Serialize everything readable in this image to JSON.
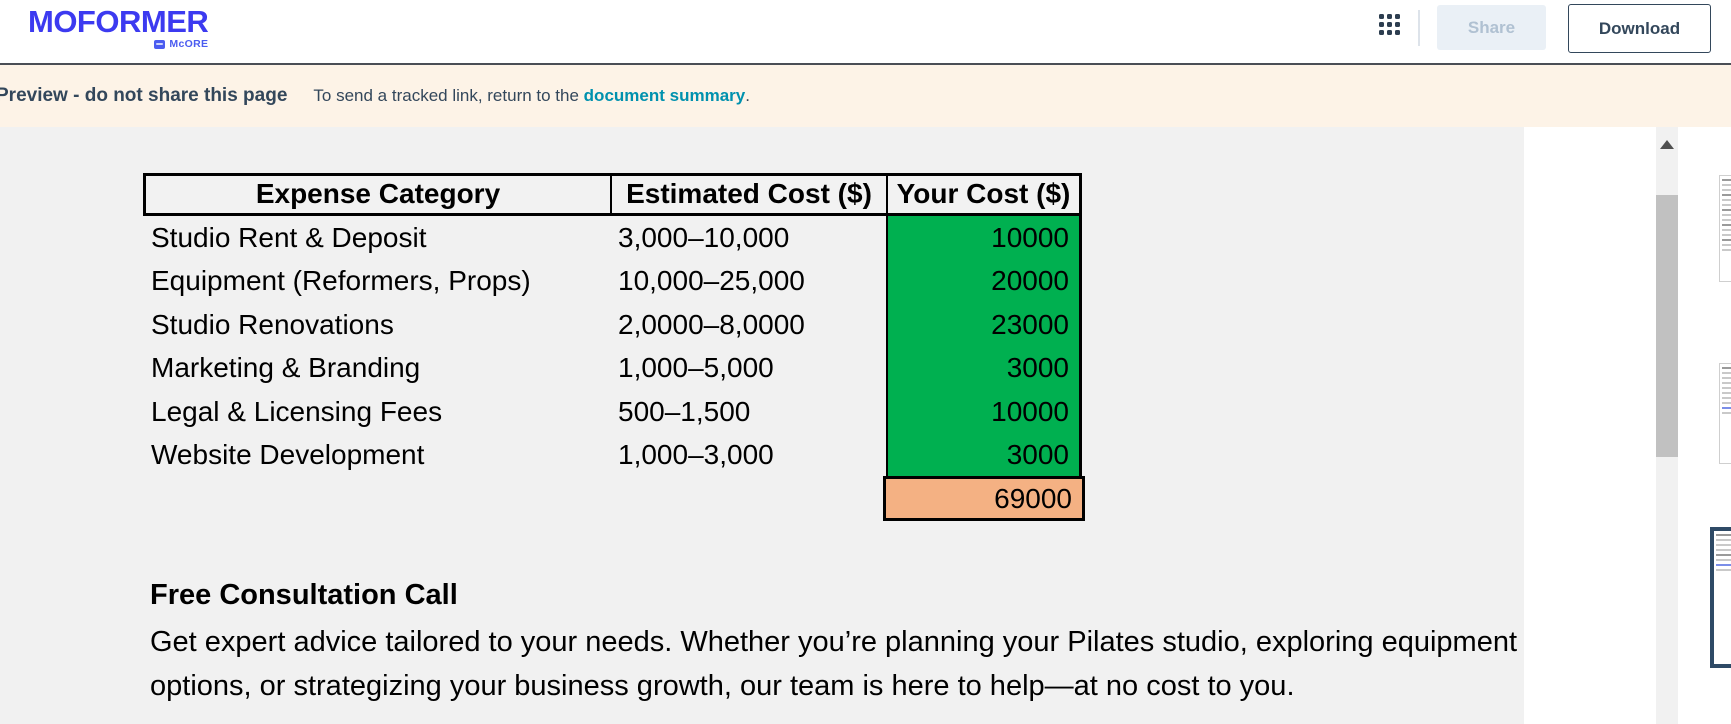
{
  "header": {
    "logo": {
      "text": "MOFORMER",
      "subtext": "McORE"
    },
    "share_label": "Share",
    "download_label": "Download",
    "icons": {
      "apps": "grid-3x3-dots-icon"
    }
  },
  "banner": {
    "bold_text": "Preview - do not share this page",
    "info_text": "To send a tracked link, return to the ",
    "link_text": "document summary",
    "suffix": "."
  },
  "document": {
    "table": {
      "headers": [
        "Expense Category",
        "Estimated Cost ($)",
        "Your Cost ($)"
      ],
      "rows": [
        {
          "category": "Studio Rent & Deposit",
          "estimated": "3,000–10,000",
          "your_cost": "10000"
        },
        {
          "category": "Equipment (Reformers, Props)",
          "estimated": "10,000–25,000",
          "your_cost": "20000"
        },
        {
          "category": "Studio Renovations",
          "estimated": "2,0000–8,0000",
          "your_cost": "23000"
        },
        {
          "category": "Marketing & Branding",
          "estimated": "1,000–5,000",
          "your_cost": "3000"
        },
        {
          "category": "Legal & Licensing Fees",
          "estimated": "500–1,500",
          "your_cost": "10000"
        },
        {
          "category": "Website Development",
          "estimated": "1,000–3,000",
          "your_cost": "3000"
        }
      ],
      "total": "69000"
    },
    "section": {
      "heading": "Free Consultation Call",
      "body": "Get expert advice tailored to your needs. Whether you’re planning your Pilates studio, exploring equipment options, or strategizing your business growth, our team is here to help—at no cost to you."
    }
  },
  "colors": {
    "logo_blue": "#3c3af0",
    "banner_background": "#fdf3e7",
    "banner_text": "#33475b",
    "link_teal": "#0091ae",
    "cell_green": "#00b050",
    "total_orange": "#f4b183",
    "page_grey": "#f1f1f1",
    "scroll_thumb": "#c1c1c1"
  }
}
